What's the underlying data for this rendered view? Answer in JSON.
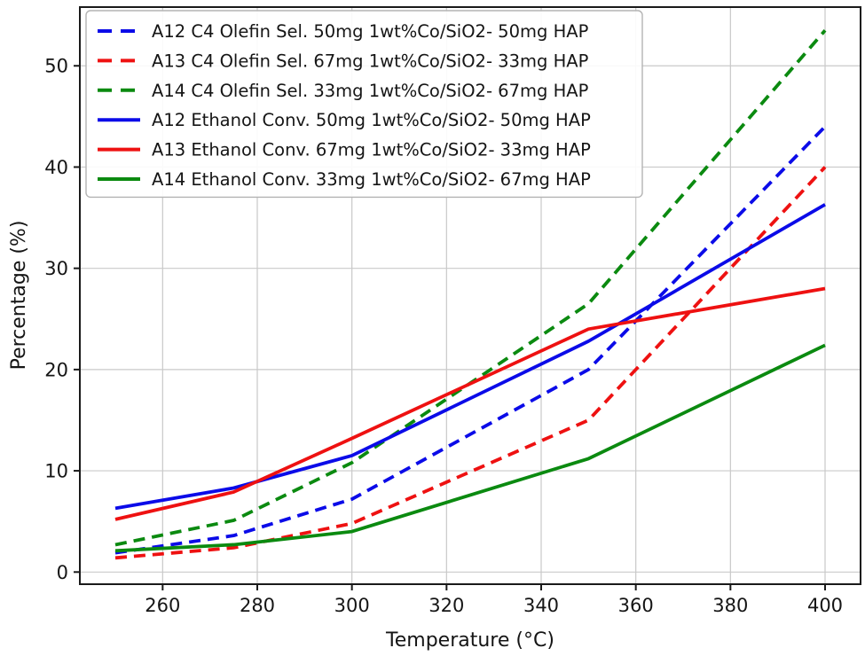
{
  "chart_data": {
    "type": "line",
    "x": [
      250,
      275,
      300,
      350,
      400
    ],
    "series": [
      {
        "name": "A12 C4 Olefin Sel. 50mg 1wt%Co/SiO2- 50mg HAP",
        "color": "#0b0be8",
        "dash": true,
        "values": [
          1.9,
          3.6,
          7.2,
          20.0,
          44.0
        ]
      },
      {
        "name": "A13 C4 Olefin Sel. 67mg 1wt%Co/SiO2- 33mg HAP",
        "color": "#ee1111",
        "dash": true,
        "values": [
          1.4,
          2.4,
          4.8,
          15.0,
          40.0
        ]
      },
      {
        "name": "A14 C4 Olefin Sel. 33mg 1wt%Co/SiO2- 67mg HAP",
        "color": "#0b8a10",
        "dash": true,
        "values": [
          2.7,
          5.1,
          10.8,
          26.5,
          53.5
        ]
      },
      {
        "name": "A12 Ethanol Conv. 50mg 1wt%Co/SiO2- 50mg HAP",
        "color": "#0b0be8",
        "dash": false,
        "values": [
          6.3,
          8.3,
          11.5,
          22.8,
          36.3
        ]
      },
      {
        "name": "A13 Ethanol Conv. 67mg 1wt%Co/SiO2- 33mg HAP",
        "color": "#ee1111",
        "dash": false,
        "values": [
          5.2,
          7.9,
          13.2,
          24.0,
          28.0
        ]
      },
      {
        "name": "A14 Ethanol Conv. 33mg 1wt%Co/SiO2- 67mg HAP",
        "color": "#0b8a10",
        "dash": false,
        "values": [
          2.1,
          2.7,
          4.0,
          11.2,
          22.4
        ]
      }
    ],
    "xlabel": "Temperature (°C)",
    "ylabel": "Percentage (%)",
    "x_ticks": [
      260,
      280,
      300,
      320,
      340,
      360,
      380,
      400
    ],
    "y_ticks": [
      0,
      10,
      20,
      30,
      40,
      50
    ],
    "xlim": [
      242.5,
      407.5
    ],
    "ylim": [
      -1.2,
      55.8
    ],
    "grid": true,
    "legend_position": "upper left",
    "colors": {
      "grid": "#c9c9c9",
      "spine": "#1a1a1a",
      "legend_border": "#b3b3b3",
      "legend_bg": "#ffffff"
    }
  }
}
